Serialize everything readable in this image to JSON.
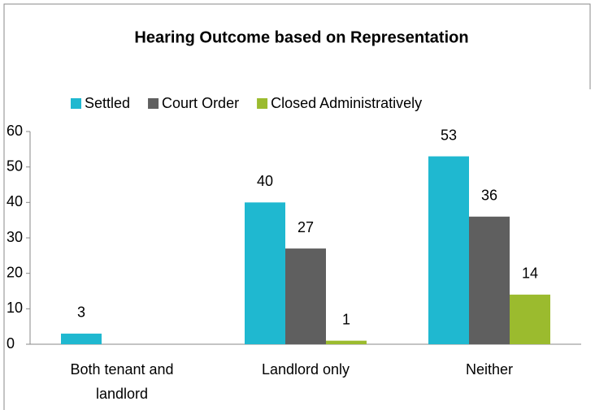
{
  "chart_data": {
    "type": "bar",
    "title": "Hearing Outcome based on Representation",
    "categories": [
      "Both tenant and landlord",
      "Landlord only",
      "Neither"
    ],
    "series": [
      {
        "name": "Settled",
        "color": "#1fb8d0",
        "values": [
          3,
          40,
          53
        ]
      },
      {
        "name": "Court Order",
        "color": "#5f5f5f",
        "values": [
          null,
          27,
          36
        ]
      },
      {
        "name": "Closed Administratively",
        "color": "#9bbb2e",
        "values": [
          null,
          1,
          14
        ]
      }
    ],
    "ylim": [
      0,
      60
    ],
    "yticks": [
      0,
      10,
      20,
      30,
      40,
      50,
      60
    ],
    "grid": false,
    "legend": "top"
  }
}
